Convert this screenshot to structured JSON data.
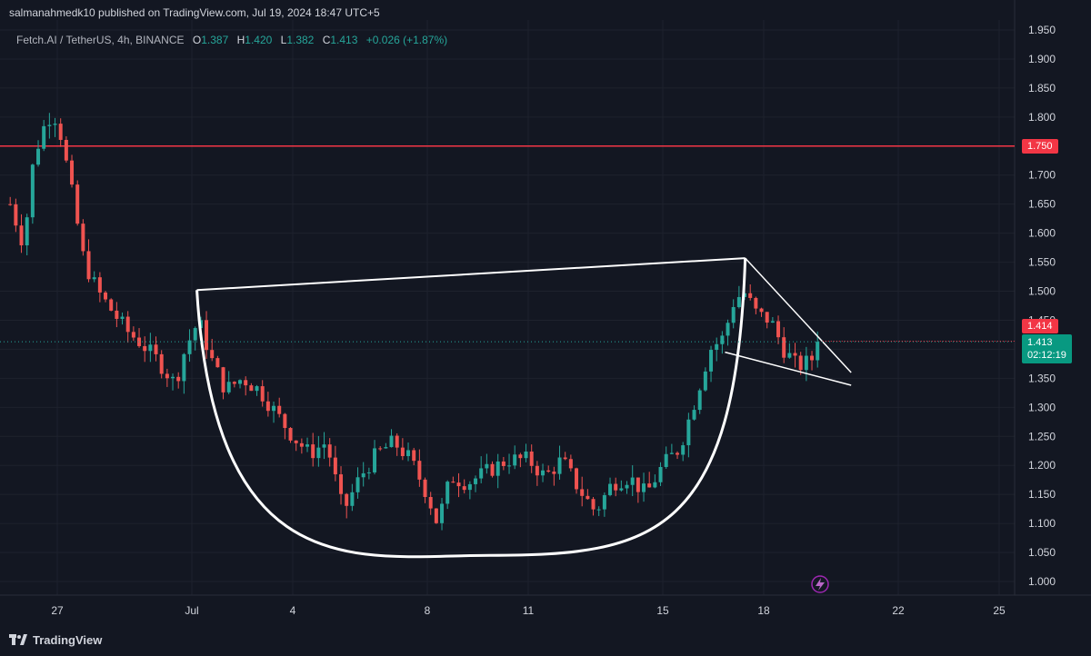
{
  "header": {
    "publisher": "salmanahmedk10 published on TradingView.com, Jul 19, 2024 18:47 UTC+5",
    "symbol": "Fetch.AI / TetherUS, 4h, BINANCE",
    "open_label": "O",
    "open": "1.387",
    "high_label": "H",
    "high": "1.420",
    "low_label": "L",
    "low": "1.382",
    "close_label": "C",
    "close": "1.413",
    "change": "+0.026 (+1.87%)"
  },
  "price_tags": {
    "level": "1.750",
    "prev": "1.414",
    "last": "1.413",
    "countdown": "02:12:19"
  },
  "brand": {
    "label": "TradingView"
  },
  "colors": {
    "background": "#131722",
    "up": "#26a69a",
    "down": "#ef5350",
    "level_line": "#f23645",
    "drawing": "#ffffff",
    "grid": "#1e222d"
  },
  "chart_data": {
    "type": "candlestick",
    "title": "Fetch.AI / TetherUS, 4h, BINANCE",
    "ylim": [
      0.97,
      1.97
    ],
    "y_ticks": [
      "1.000",
      "1.050",
      "1.100",
      "1.150",
      "1.200",
      "1.250",
      "1.300",
      "1.350",
      "1.400",
      "1.450",
      "1.500",
      "1.550",
      "1.600",
      "1.650",
      "1.700",
      "1.750",
      "1.800",
      "1.850",
      "1.900",
      "1.950"
    ],
    "x_ticks": [
      {
        "label": "27",
        "day": -4
      },
      {
        "label": "Jul",
        "day": 0
      },
      {
        "label": "4",
        "day": 3
      },
      {
        "label": "8",
        "day": 7
      },
      {
        "label": "11",
        "day": 10
      },
      {
        "label": "15",
        "day": 14
      },
      {
        "label": "18",
        "day": 17
      },
      {
        "label": "22",
        "day": 21
      },
      {
        "label": "25",
        "day": 24
      }
    ],
    "horizontal_level": 1.75,
    "last_price": 1.413,
    "pattern": {
      "name": "cup and handle",
      "cup_rim_left": {
        "day": 0.15,
        "price": 1.502
      },
      "cup_rim_right": {
        "day": 16.45,
        "price": 1.557
      },
      "cup_bottom": {
        "day": 8.85,
        "price": 1.045
      },
      "handle_upper": [
        {
          "day": 16.45,
          "price": 1.557
        },
        {
          "day": 19.6,
          "price": 1.36
        }
      ],
      "handle_lower": [
        {
          "day": 15.85,
          "price": 1.395
        },
        {
          "day": 19.6,
          "price": 1.338
        }
      ]
    },
    "ohlc_anchor_points": [
      {
        "day": -5.4,
        "price": 1.65
      },
      {
        "day": -5.0,
        "price": 1.58
      },
      {
        "day": -4.7,
        "price": 1.73
      },
      {
        "day": -4.3,
        "price": 1.8
      },
      {
        "day": -4.0,
        "price": 1.8
      },
      {
        "day": -3.6,
        "price": 1.68
      },
      {
        "day": -3.2,
        "price": 1.55
      },
      {
        "day": -2.8,
        "price": 1.5
      },
      {
        "day": -2.3,
        "price": 1.46
      },
      {
        "day": -1.9,
        "price": 1.43
      },
      {
        "day": -1.5,
        "price": 1.41
      },
      {
        "day": -1.0,
        "price": 1.38
      },
      {
        "day": -0.5,
        "price": 1.34
      },
      {
        "day": -0.2,
        "price": 1.4
      },
      {
        "day": 0.2,
        "price": 1.45
      },
      {
        "day": 0.6,
        "price": 1.38
      },
      {
        "day": 1.0,
        "price": 1.33
      },
      {
        "day": 1.5,
        "price": 1.35
      },
      {
        "day": 2.0,
        "price": 1.33
      },
      {
        "day": 2.5,
        "price": 1.29
      },
      {
        "day": 3.0,
        "price": 1.25
      },
      {
        "day": 3.5,
        "price": 1.22
      },
      {
        "day": 4.0,
        "price": 1.24
      },
      {
        "day": 4.5,
        "price": 1.12
      },
      {
        "day": 5.0,
        "price": 1.18
      },
      {
        "day": 5.5,
        "price": 1.22
      },
      {
        "day": 6.0,
        "price": 1.24
      },
      {
        "day": 6.5,
        "price": 1.21
      },
      {
        "day": 7.0,
        "price": 1.15
      },
      {
        "day": 7.3,
        "price": 1.1
      },
      {
        "day": 7.7,
        "price": 1.18
      },
      {
        "day": 8.2,
        "price": 1.17
      },
      {
        "day": 8.8,
        "price": 1.19
      },
      {
        "day": 9.4,
        "price": 1.21
      },
      {
        "day": 10.0,
        "price": 1.21
      },
      {
        "day": 10.5,
        "price": 1.18
      },
      {
        "day": 11.0,
        "price": 1.21
      },
      {
        "day": 11.5,
        "price": 1.16
      },
      {
        "day": 12.0,
        "price": 1.12
      },
      {
        "day": 12.5,
        "price": 1.17
      },
      {
        "day": 13.0,
        "price": 1.18
      },
      {
        "day": 13.5,
        "price": 1.15
      },
      {
        "day": 14.0,
        "price": 1.2
      },
      {
        "day": 14.5,
        "price": 1.23
      },
      {
        "day": 15.0,
        "price": 1.32
      },
      {
        "day": 15.4,
        "price": 1.4
      },
      {
        "day": 15.8,
        "price": 1.42
      },
      {
        "day": 16.1,
        "price": 1.48
      },
      {
        "day": 16.4,
        "price": 1.5
      },
      {
        "day": 16.8,
        "price": 1.46
      },
      {
        "day": 17.2,
        "price": 1.45
      },
      {
        "day": 17.6,
        "price": 1.4
      },
      {
        "day": 18.0,
        "price": 1.37
      },
      {
        "day": 18.4,
        "price": 1.38
      },
      {
        "day": 18.7,
        "price": 1.413
      }
    ]
  }
}
